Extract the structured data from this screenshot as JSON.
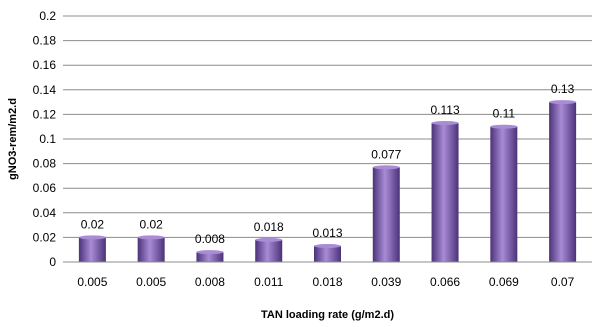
{
  "chart_data": {
    "type": "bar",
    "title": "",
    "xlabel": "TAN loading rate (g/m2.d)",
    "ylabel": "gNO3-rem/m2.d",
    "categories": [
      "0.005",
      "0.005",
      "0.008",
      "0.011",
      "0.018",
      "0.039",
      "0.066",
      "0.069",
      "0.07"
    ],
    "values": [
      0.02,
      0.02,
      0.008,
      0.018,
      0.013,
      0.077,
      0.113,
      0.11,
      0.13
    ],
    "data_labels": [
      "0.02",
      "0.02",
      "0.008",
      "0.018",
      "0.013",
      "0.077",
      "0.113",
      "0.11",
      "0.13"
    ],
    "ylim": [
      0,
      0.2
    ],
    "yticks": [
      "0",
      "0.02",
      "0.04",
      "0.06",
      "0.08",
      "0.1",
      "0.12",
      "0.14",
      "0.16",
      "0.18",
      "0.2"
    ],
    "grid": true,
    "legend": "none",
    "bar_color": "#7b5ab3",
    "bar_light_color": "#a98bd6",
    "bar_dark_color": "#4b3378",
    "grid_color": "#8c8c8c"
  }
}
